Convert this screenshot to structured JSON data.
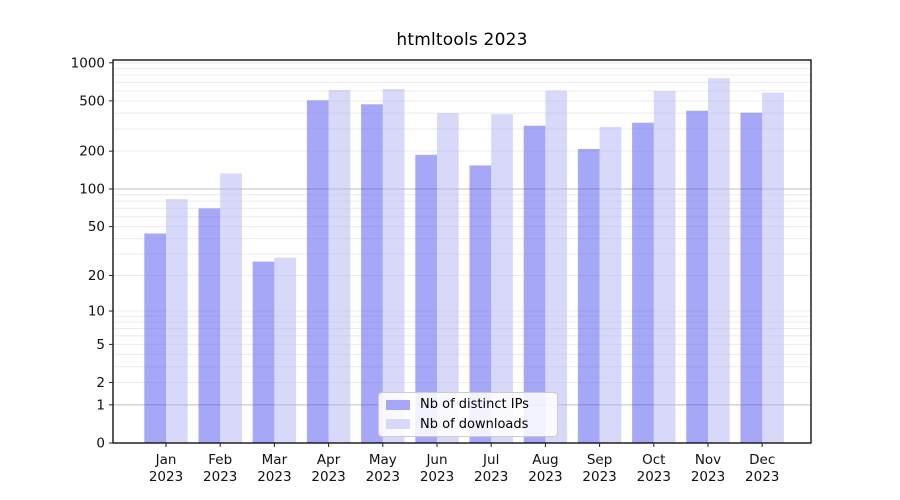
{
  "chart_data": {
    "type": "bar",
    "title": "htmltools 2023",
    "categories": [
      "Jan",
      "Feb",
      "Mar",
      "Apr",
      "May",
      "Jun",
      "Jul",
      "Aug",
      "Sep",
      "Oct",
      "Nov",
      "Dec"
    ],
    "year_label": "2023",
    "series": [
      {
        "name": "Nb of distinct IPs",
        "color": "rgba(80,80,240,0.5)",
        "swatch": "#a7a7f7",
        "values": [
          44,
          70,
          26,
          505,
          470,
          187,
          154,
          318,
          208,
          336,
          418,
          403
        ]
      },
      {
        "name": "Nb of downloads",
        "color": "rgba(177,177,241,0.5)",
        "swatch": "#d8d8f8",
        "values": [
          83,
          133,
          28,
          610,
          620,
          400,
          392,
          603,
          311,
          598,
          755,
          581
        ]
      }
    ],
    "y_ticks": [
      0,
      1,
      2,
      5,
      10,
      20,
      50,
      100,
      200,
      500,
      1000
    ],
    "major_gridlines": [
      1,
      100
    ],
    "scale": "log10(1+y)",
    "ylim": [
      0,
      1052
    ],
    "grid": true,
    "legend_position": "lower center",
    "colors": {
      "minor_grid": "#ececec",
      "major_grid": "#bdbdbd",
      "spine": "#000000",
      "tick_text": "#111111"
    }
  }
}
